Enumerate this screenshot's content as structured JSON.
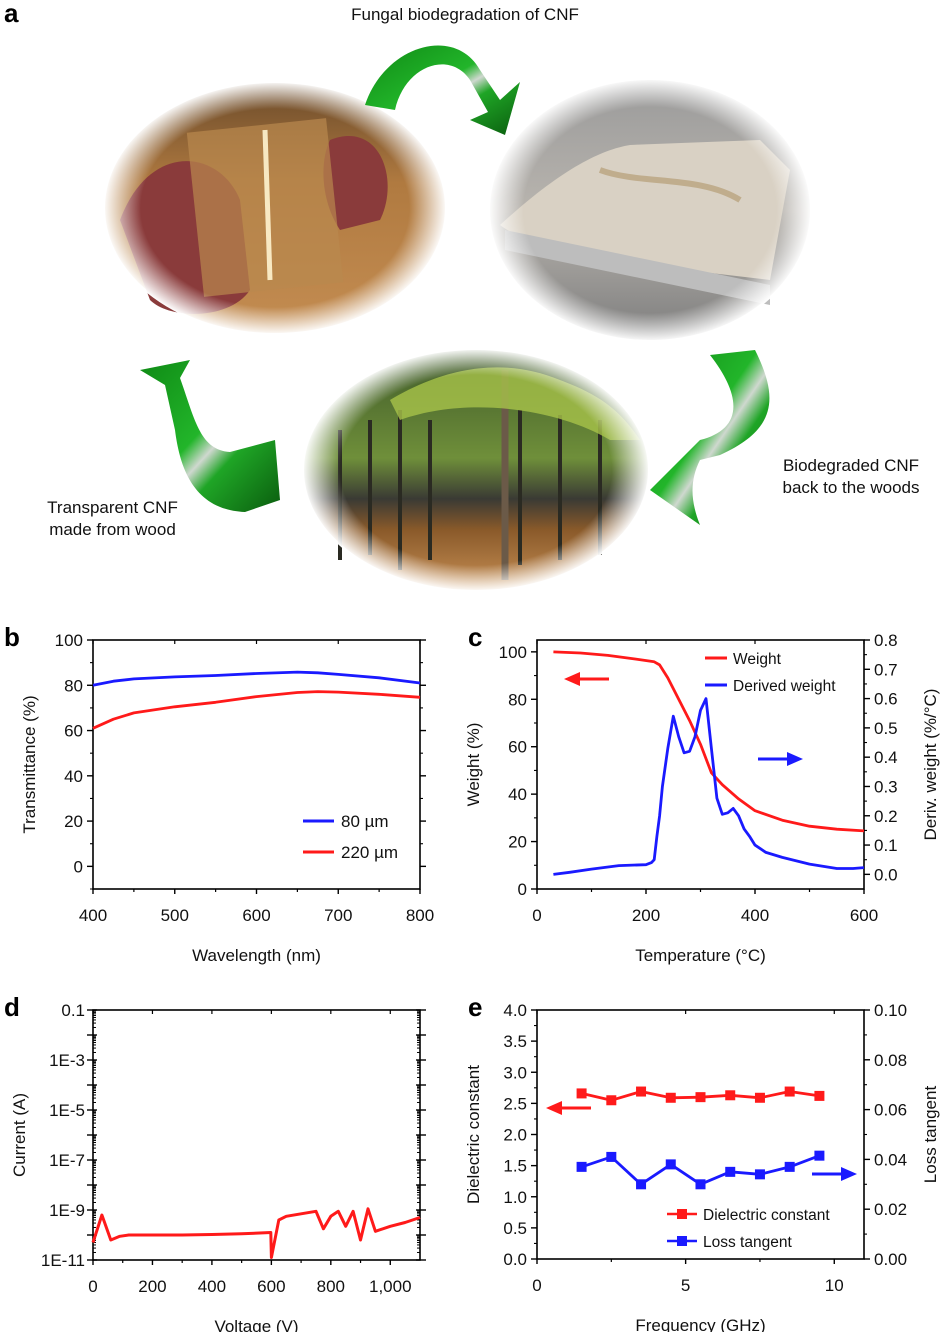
{
  "figure": {
    "panel_a": {
      "letter": "a",
      "captions": {
        "top": "Fungal biodegradation of CNF",
        "left_line1": "Transparent CNF",
        "left_line2": "made from wood",
        "right_line1": "Biodegraded CNF",
        "right_line2": "back to the woods"
      },
      "photos": [
        {
          "name": "transparent-cnf-film-photo",
          "desc": "Gloved hands holding transparent CNF film"
        },
        {
          "name": "biodegraded-cnf-photo",
          "desc": "CNF sample covered by fungal growth"
        },
        {
          "name": "forest-photo",
          "desc": "Pine forest"
        }
      ],
      "arrow_color": "#17a51f"
    },
    "panel_b": {
      "letter": "b"
    },
    "panel_c": {
      "letter": "c"
    },
    "panel_d": {
      "letter": "d"
    },
    "panel_e": {
      "letter": "e"
    }
  },
  "colors": {
    "red": "#ff1a1a",
    "blue": "#1a1aff",
    "axis": "#000000"
  },
  "chart_data": [
    {
      "id": "b",
      "type": "line",
      "title": "",
      "xlabel": "Wavelength (nm)",
      "ylabel": "Transmittance (%)",
      "xlim": [
        400,
        800
      ],
      "ylim": [
        -10,
        100
      ],
      "xticks": [
        400,
        500,
        600,
        700,
        800
      ],
      "yticks": [
        0,
        20,
        40,
        60,
        80,
        100
      ],
      "grid": false,
      "legend_position": "lower right",
      "series": [
        {
          "name": "80 µm",
          "color": "#1a1aff",
          "x": [
            400,
            425,
            450,
            500,
            550,
            600,
            650,
            675,
            700,
            750,
            800
          ],
          "y": [
            80,
            81.8,
            82.8,
            83.7,
            84.3,
            85.2,
            85.8,
            85.5,
            84.8,
            83.3,
            81
          ]
        },
        {
          "name": "220 µm",
          "color": "#ff1a1a",
          "x": [
            400,
            425,
            450,
            500,
            550,
            600,
            650,
            675,
            700,
            750,
            800
          ],
          "y": [
            61,
            65,
            67.8,
            70.5,
            72.5,
            75,
            76.8,
            77.2,
            77,
            76,
            74.7
          ]
        }
      ]
    },
    {
      "id": "c",
      "type": "line",
      "title": "",
      "xlabel": "Temperature (°C)",
      "ylabel": "Weight (%)",
      "ylabel_right": "Deriv. weight (%/°C)",
      "xlim": [
        0,
        600
      ],
      "ylim": [
        0,
        105
      ],
      "ylim_right": [
        -0.05,
        0.8
      ],
      "xticks": [
        0,
        200,
        400,
        600
      ],
      "yticks": [
        0,
        20,
        40,
        60,
        80,
        100
      ],
      "yticks_right": [
        0.0,
        0.1,
        0.2,
        0.3,
        0.4,
        0.5,
        0.6,
        0.7,
        0.8
      ],
      "grid": false,
      "legend_position": "upper right",
      "annotations": [
        {
          "type": "arrow",
          "direction": "left",
          "color": "#ff1a1a",
          "meaning": "Weight uses left axis"
        },
        {
          "type": "arrow",
          "direction": "right",
          "color": "#1a1aff",
          "meaning": "Derived weight uses right axis"
        }
      ],
      "series": [
        {
          "name": "Weight",
          "color": "#ff1a1a",
          "axis": "left",
          "x": [
            30,
            80,
            130,
            180,
            215,
            225,
            240,
            260,
            280,
            300,
            320,
            340,
            370,
            400,
            450,
            500,
            550,
            600
          ],
          "y": [
            100,
            99.5,
            98.5,
            97,
            95.8,
            94.5,
            89,
            80,
            71,
            61,
            49,
            44,
            38,
            33,
            29,
            26.5,
            25.2,
            24.5
          ]
        },
        {
          "name": "Derived weight",
          "color": "#1a1aff",
          "axis": "right",
          "x": [
            30,
            60,
            100,
            150,
            200,
            210,
            215,
            220,
            225,
            230,
            240,
            250,
            260,
            270,
            280,
            290,
            300,
            310,
            320,
            330,
            340,
            350,
            360,
            370,
            380,
            390,
            400,
            420,
            450,
            500,
            550,
            580,
            600
          ],
          "y": [
            0.0,
            0.007,
            0.018,
            0.03,
            0.033,
            0.04,
            0.05,
            0.13,
            0.2,
            0.3,
            0.43,
            0.54,
            0.47,
            0.415,
            0.42,
            0.47,
            0.56,
            0.6,
            0.43,
            0.26,
            0.205,
            0.21,
            0.225,
            0.2,
            0.155,
            0.13,
            0.1,
            0.075,
            0.058,
            0.035,
            0.02,
            0.02,
            0.023
          ]
        }
      ]
    },
    {
      "id": "d",
      "type": "line",
      "title": "",
      "xlabel": "Voltage (V)",
      "ylabel": "Current (A)",
      "xlim": [
        0,
        1100
      ],
      "ylim_log10": [
        -11,
        -1
      ],
      "yscale": "log",
      "xticks": [
        0,
        200,
        400,
        600,
        800,
        1000
      ],
      "xtick_labels": [
        "0",
        "200",
        "400",
        "600",
        "800",
        "1,000"
      ],
      "yticks_log10": [
        -11,
        -9,
        -7,
        -5,
        -3,
        -1
      ],
      "ytick_labels": [
        "1E-11",
        "1E-9",
        "1E-7",
        "1E-5",
        "1E-3",
        "0.1"
      ],
      "grid": false,
      "series": [
        {
          "name": "Current",
          "color": "#ff1a1a",
          "x": [
            0,
            30,
            60,
            90,
            120,
            200,
            300,
            400,
            500,
            598,
            600,
            625,
            650,
            700,
            750,
            775,
            800,
            825,
            850,
            875,
            900,
            925,
            950,
            1000,
            1050,
            1100
          ],
          "log10_y": [
            -10.3,
            -9.2,
            -10.2,
            -10.05,
            -10.0,
            -10.0,
            -10.0,
            -9.98,
            -9.95,
            -9.9,
            -10.9,
            -9.4,
            -9.25,
            -9.15,
            -9.05,
            -9.75,
            -9.25,
            -9.05,
            -9.65,
            -9.05,
            -10.2,
            -8.95,
            -9.85,
            -9.65,
            -9.5,
            -9.3
          ]
        }
      ]
    },
    {
      "id": "e",
      "type": "line",
      "title": "",
      "xlabel": "Frequency (GHz)",
      "ylabel": "Dielectric constant",
      "ylabel_right": "Loss tangent",
      "xlim": [
        0,
        11
      ],
      "ylim": [
        0,
        4.0
      ],
      "ylim_right": [
        0,
        0.1
      ],
      "xticks": [
        0,
        5,
        10
      ],
      "yticks": [
        0.0,
        0.5,
        1.0,
        1.5,
        2.0,
        2.5,
        3.0,
        3.5,
        4.0
      ],
      "yticks_right": [
        0.0,
        0.02,
        0.04,
        0.06,
        0.08,
        0.1
      ],
      "grid": false,
      "legend_position": "lower right",
      "marker": "square",
      "annotations": [
        {
          "type": "arrow",
          "direction": "left",
          "color": "#ff1a1a",
          "meaning": "Dielectric constant uses left axis"
        },
        {
          "type": "arrow",
          "direction": "right",
          "color": "#1a1aff",
          "meaning": "Loss tangent uses right axis"
        }
      ],
      "series": [
        {
          "name": "Dielectric constant",
          "color": "#ff1a1a",
          "axis": "left",
          "x": [
            1.5,
            2.5,
            3.5,
            4.5,
            5.5,
            6.5,
            7.5,
            8.5,
            9.5
          ],
          "y": [
            2.66,
            2.55,
            2.69,
            2.59,
            2.6,
            2.63,
            2.59,
            2.69,
            2.62
          ]
        },
        {
          "name": "Loss tangent",
          "color": "#1a1aff",
          "axis": "right",
          "x": [
            1.5,
            2.5,
            3.5,
            4.5,
            5.5,
            6.5,
            7.5,
            8.5,
            9.5
          ],
          "y": [
            0.037,
            0.041,
            0.03,
            0.038,
            0.03,
            0.035,
            0.034,
            0.037,
            0.0415
          ]
        }
      ]
    }
  ]
}
